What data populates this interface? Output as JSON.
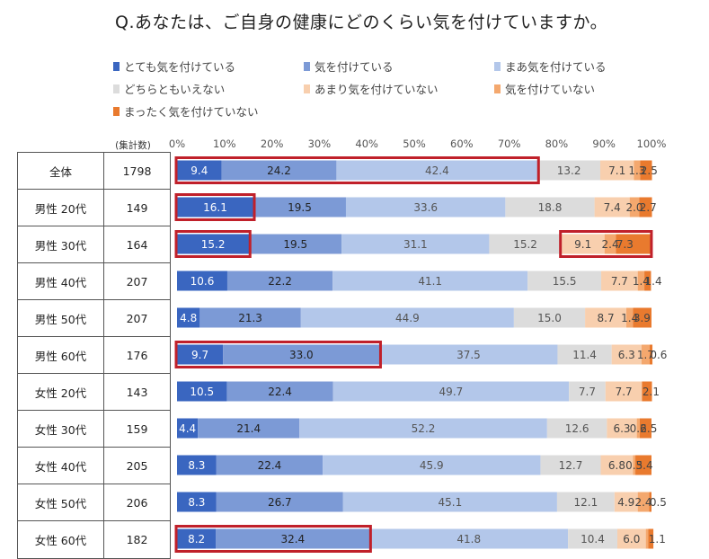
{
  "title": "Q.あなたは、ご自身の健康にどのくらい気を付けていますか。",
  "count_header": "(集計数)",
  "colors": {
    "series": [
      "#3a66c0",
      "#7c9ad6",
      "#b3c7ea",
      "#dcdcdc",
      "#f8cfae",
      "#f4a86e",
      "#e97a2e"
    ],
    "highlight": "#c0202a"
  },
  "chart_data": {
    "type": "bar",
    "orientation": "horizontal",
    "stacked": true,
    "title": "Q.あなたは、ご自身の健康にどのくらい気を付けていますか。",
    "xlim": [
      0,
      100
    ],
    "x_ticks": [
      "0%",
      "10%",
      "20%",
      "30%",
      "40%",
      "50%",
      "60%",
      "70%",
      "80%",
      "90%",
      "100%"
    ],
    "legend_position": "top",
    "categories": [
      "全体",
      "男性 20代",
      "男性 30代",
      "男性 40代",
      "男性 50代",
      "男性 60代",
      "女性 20代",
      "女性 30代",
      "女性 40代",
      "女性 50代",
      "女性 60代"
    ],
    "counts": [
      "1798",
      "149",
      "164",
      "207",
      "207",
      "176",
      "143",
      "159",
      "205",
      "206",
      "182"
    ],
    "series": [
      {
        "name": "とても気を付けている",
        "values": [
          9.4,
          16.1,
          15.2,
          10.6,
          4.8,
          9.7,
          10.5,
          4.4,
          8.3,
          8.3,
          8.2
        ]
      },
      {
        "name": "気を付けている",
        "values": [
          24.2,
          19.5,
          19.5,
          22.2,
          21.3,
          33.0,
          22.4,
          21.4,
          22.4,
          26.7,
          32.4
        ]
      },
      {
        "name": "まあ気を付けている",
        "values": [
          42.4,
          33.6,
          31.1,
          41.1,
          44.9,
          37.5,
          49.7,
          52.2,
          45.9,
          45.1,
          41.8
        ]
      },
      {
        "name": "どちらともいえない",
        "values": [
          13.2,
          18.8,
          15.2,
          15.5,
          15.0,
          11.4,
          7.7,
          12.6,
          12.7,
          12.1,
          10.4
        ]
      },
      {
        "name": "あまり気を付けていない",
        "values": [
          7.1,
          7.4,
          9.1,
          7.7,
          8.7,
          6.3,
          7.7,
          6.3,
          6.8,
          4.9,
          6.0
        ]
      },
      {
        "name": "気を付けていない",
        "values": [
          1.3,
          2.0,
          2.4,
          1.4,
          1.4,
          1.7,
          0.0,
          0.6,
          0.5,
          2.4,
          0.5
        ]
      },
      {
        "name": "まったく気を付けていない",
        "values": [
          2.5,
          2.7,
          7.3,
          1.4,
          3.9,
          0.6,
          2.1,
          2.5,
          3.4,
          0.5,
          1.1
        ]
      }
    ],
    "data_labels": [
      [
        "9.4",
        "24.2",
        "42.4",
        "13.2",
        "7.1",
        "1.3",
        "2.5"
      ],
      [
        "16.1",
        "19.5",
        "33.6",
        "18.8",
        "7.4",
        "2.0",
        "2.7"
      ],
      [
        "15.2",
        "19.5",
        "31.1",
        "15.2",
        "9.1",
        "2.4",
        "7.3"
      ],
      [
        "10.6",
        "22.2",
        "41.1",
        "15.5",
        "7.7",
        "1.4",
        "1.4"
      ],
      [
        "4.8",
        "21.3",
        "44.9",
        "15.0",
        "8.7",
        "1.4",
        "3.9"
      ],
      [
        "9.7",
        "33.0",
        "37.5",
        "11.4",
        "6.3",
        "1.7",
        "0.6"
      ],
      [
        "10.5",
        "22.4",
        "49.7",
        "7.7",
        "7.7",
        "",
        "2.1"
      ],
      [
        "4.4",
        "21.4",
        "52.2",
        "12.6",
        "6.3",
        "0.6",
        "2.5"
      ],
      [
        "8.3",
        "22.4",
        "45.9",
        "12.7",
        "6.8",
        "0.5",
        "3.4"
      ],
      [
        "8.3",
        "26.7",
        "45.1",
        "12.1",
        "4.9",
        "2.4",
        "0.5"
      ],
      [
        "8.2",
        "32.4",
        "41.8",
        "10.4",
        "6.0",
        "",
        "1.1"
      ]
    ],
    "highlights": [
      {
        "row": 0,
        "from_series": 0,
        "to_series": 2
      },
      {
        "row": 1,
        "from_series": 0,
        "to_series": 0
      },
      {
        "row": 2,
        "from_series": 0,
        "to_series": 0
      },
      {
        "row": 2,
        "from_series": 4,
        "to_series": 6
      },
      {
        "row": 5,
        "from_series": 0,
        "to_series": 1
      },
      {
        "row": 10,
        "from_series": 0,
        "to_series": 1
      }
    ]
  }
}
